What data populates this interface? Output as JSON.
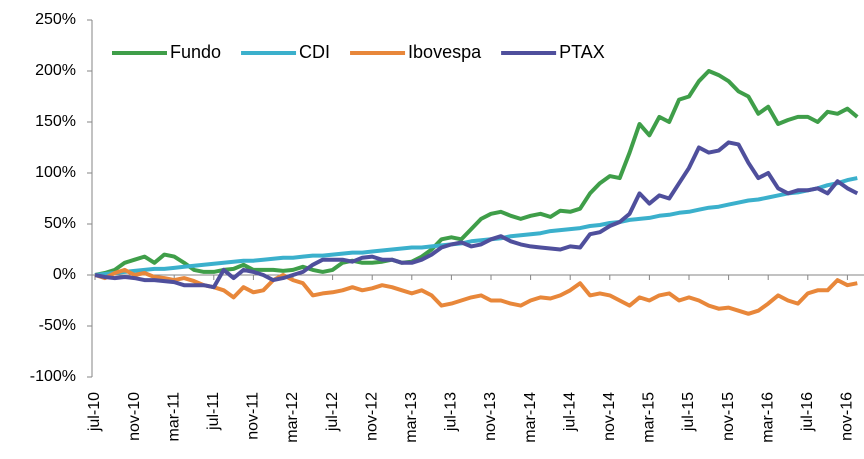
{
  "chart_data": {
    "type": "line",
    "legend": "upper left",
    "categories": [
      "jul-10",
      null,
      null,
      null,
      "nov-10",
      null,
      null,
      null,
      "mar-11",
      null,
      null,
      null,
      "jul-11",
      null,
      null,
      null,
      "nov-11",
      null,
      null,
      null,
      "mar-12",
      null,
      null,
      null,
      "jul-12",
      null,
      null,
      null,
      "nov-12",
      null,
      null,
      null,
      "mar-13",
      null,
      null,
      null,
      "jul-13",
      null,
      null,
      null,
      "nov-13",
      null,
      null,
      null,
      "mar-14",
      null,
      null,
      null,
      "jul-14",
      null,
      null,
      null,
      "nov-14",
      null,
      null,
      null,
      "mar-15",
      null,
      null,
      null,
      "jul-15",
      null,
      null,
      null,
      "nov-15",
      null,
      null,
      null,
      "mar-16",
      null,
      null,
      null,
      "jul-16",
      null,
      null,
      null,
      "nov-16",
      null
    ],
    "series": [
      {
        "name": "Fundo",
        "color": "#3f9e49",
        "values": [
          0,
          2,
          5,
          12,
          15,
          18,
          12,
          20,
          18,
          12,
          5,
          3,
          3,
          5,
          6,
          10,
          5,
          5,
          5,
          4,
          5,
          8,
          5,
          3,
          5,
          12,
          14,
          12,
          12,
          13,
          15,
          12,
          13,
          18,
          25,
          35,
          37,
          35,
          45,
          55,
          60,
          62,
          58,
          55,
          58,
          60,
          57,
          63,
          62,
          65,
          80,
          90,
          97,
          95,
          120,
          148,
          137,
          155,
          150,
          172,
          175,
          190,
          200,
          196,
          190,
          180,
          175,
          158,
          165,
          148,
          152,
          155,
          155,
          150,
          160,
          158,
          163,
          155
        ]
      },
      {
        "name": "CDI",
        "color": "#3bb0cc",
        "values": [
          0,
          1,
          2,
          3,
          4,
          5,
          6,
          6,
          7,
          8,
          9,
          10,
          11,
          12,
          13,
          14,
          14,
          15,
          16,
          17,
          17,
          18,
          19,
          19,
          20,
          21,
          22,
          22,
          23,
          24,
          25,
          26,
          27,
          27,
          28,
          29,
          30,
          31,
          33,
          34,
          35,
          36,
          38,
          39,
          40,
          41,
          43,
          44,
          45,
          46,
          48,
          49,
          51,
          52,
          54,
          55,
          56,
          58,
          59,
          61,
          62,
          64,
          66,
          67,
          69,
          71,
          73,
          74,
          76,
          78,
          80,
          81,
          83,
          85,
          88,
          90,
          93,
          95
        ]
      },
      {
        "name": "Ibovespa",
        "color": "#e8873a",
        "values": [
          0,
          -3,
          2,
          5,
          0,
          2,
          -2,
          -3,
          -5,
          -3,
          -6,
          -10,
          -12,
          -15,
          -22,
          -12,
          -17,
          -15,
          -5,
          0,
          -5,
          -8,
          -20,
          -18,
          -17,
          -15,
          -12,
          -15,
          -13,
          -10,
          -12,
          -15,
          -18,
          -15,
          -20,
          -30,
          -28,
          -25,
          -22,
          -20,
          -25,
          -25,
          -28,
          -30,
          -25,
          -22,
          -23,
          -20,
          -15,
          -8,
          -20,
          -18,
          -20,
          -25,
          -30,
          -22,
          -25,
          -20,
          -18,
          -25,
          -22,
          -25,
          -30,
          -33,
          -32,
          -35,
          -38,
          -35,
          -28,
          -20,
          -25,
          -28,
          -18,
          -15,
          -15,
          -5,
          -10,
          -8
        ]
      },
      {
        "name": "PTAX",
        "color": "#4f4f9c",
        "values": [
          0,
          -2,
          -3,
          -2,
          -3,
          -5,
          -5,
          -6,
          -7,
          -10,
          -10,
          -10,
          -12,
          5,
          -3,
          5,
          3,
          0,
          -5,
          -3,
          0,
          3,
          10,
          15,
          15,
          15,
          13,
          17,
          18,
          15,
          15,
          12,
          12,
          15,
          20,
          27,
          30,
          32,
          28,
          30,
          35,
          38,
          33,
          30,
          28,
          27,
          26,
          25,
          28,
          27,
          40,
          42,
          48,
          52,
          60,
          80,
          70,
          78,
          75,
          90,
          105,
          125,
          120,
          122,
          130,
          128,
          110,
          95,
          100,
          85,
          80,
          83,
          83,
          85,
          80,
          92,
          85,
          80
        ]
      }
    ],
    "ylim": [
      -100,
      250
    ],
    "yticks": [
      {
        "value": -100,
        "label": "-100%"
      },
      {
        "value": -50,
        "label": "-50%"
      },
      {
        "value": 0,
        "label": "0%"
      },
      {
        "value": 50,
        "label": "50%"
      },
      {
        "value": 100,
        "label": "100%"
      },
      {
        "value": 150,
        "label": "150%"
      },
      {
        "value": 200,
        "label": "200%"
      },
      {
        "value": 250,
        "label": "250%"
      }
    ]
  }
}
